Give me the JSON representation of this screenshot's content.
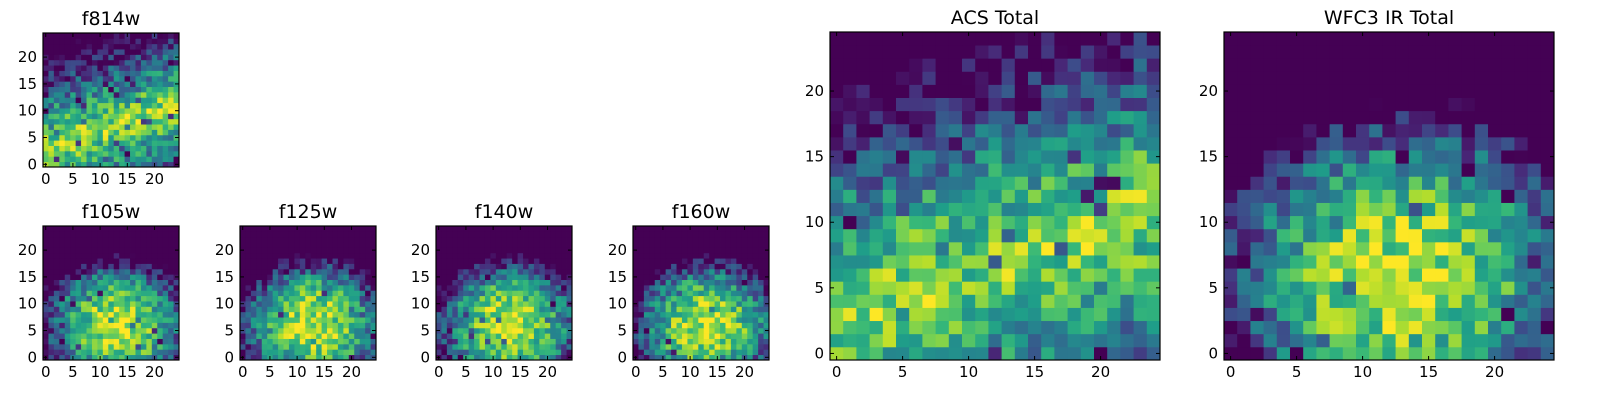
{
  "chart_data": [
    {
      "id": "f814w",
      "type": "heatmap",
      "title": "f814w",
      "grid_size": [
        25,
        25
      ],
      "xlim": [
        0,
        24
      ],
      "ylim": [
        0,
        24
      ],
      "x_ticks": [
        0,
        5,
        10,
        15,
        20
      ],
      "y_ticks": [
        0,
        5,
        10,
        15,
        20
      ],
      "colormap": "viridis",
      "pattern": "band"
    },
    {
      "id": "f105w",
      "type": "heatmap",
      "title": "f105w",
      "grid_size": [
        25,
        25
      ],
      "xlim": [
        0,
        24
      ],
      "ylim": [
        0,
        24
      ],
      "x_ticks": [
        0,
        5,
        10,
        15,
        20
      ],
      "y_ticks": [
        0,
        5,
        10,
        15,
        20
      ],
      "colormap": "viridis",
      "pattern": "blob"
    },
    {
      "id": "f125w",
      "type": "heatmap",
      "title": "f125w",
      "grid_size": [
        25,
        25
      ],
      "xlim": [
        0,
        24
      ],
      "ylim": [
        0,
        24
      ],
      "x_ticks": [
        0,
        5,
        10,
        15,
        20
      ],
      "y_ticks": [
        0,
        5,
        10,
        15,
        20
      ],
      "colormap": "viridis",
      "pattern": "blob"
    },
    {
      "id": "f140w",
      "type": "heatmap",
      "title": "f140w",
      "grid_size": [
        25,
        25
      ],
      "xlim": [
        0,
        24
      ],
      "ylim": [
        0,
        24
      ],
      "x_ticks": [
        0,
        5,
        10,
        15,
        20
      ],
      "y_ticks": [
        0,
        5,
        10,
        15,
        20
      ],
      "colormap": "viridis",
      "pattern": "blob"
    },
    {
      "id": "f160w",
      "type": "heatmap",
      "title": "f160w",
      "grid_size": [
        25,
        25
      ],
      "xlim": [
        0,
        24
      ],
      "ylim": [
        0,
        24
      ],
      "x_ticks": [
        0,
        5,
        10,
        15,
        20
      ],
      "y_ticks": [
        0,
        5,
        10,
        15,
        20
      ],
      "colormap": "viridis",
      "pattern": "blob"
    },
    {
      "id": "acs-total",
      "type": "heatmap",
      "title": "ACS Total",
      "grid_size": [
        25,
        25
      ],
      "xlim": [
        0,
        24
      ],
      "ylim": [
        0,
        24
      ],
      "x_ticks": [
        0,
        5,
        10,
        15,
        20
      ],
      "y_ticks": [
        0,
        5,
        10,
        15,
        20
      ],
      "colormap": "viridis",
      "pattern": "band"
    },
    {
      "id": "wfc3-ir-total",
      "type": "heatmap",
      "title": "WFC3 IR Total",
      "grid_size": [
        25,
        25
      ],
      "xlim": [
        0,
        24
      ],
      "ylim": [
        0,
        24
      ],
      "x_ticks": [
        0,
        5,
        10,
        15,
        20
      ],
      "y_ticks": [
        0,
        5,
        10,
        15,
        20
      ],
      "colormap": "viridis",
      "pattern": "blob"
    }
  ]
}
